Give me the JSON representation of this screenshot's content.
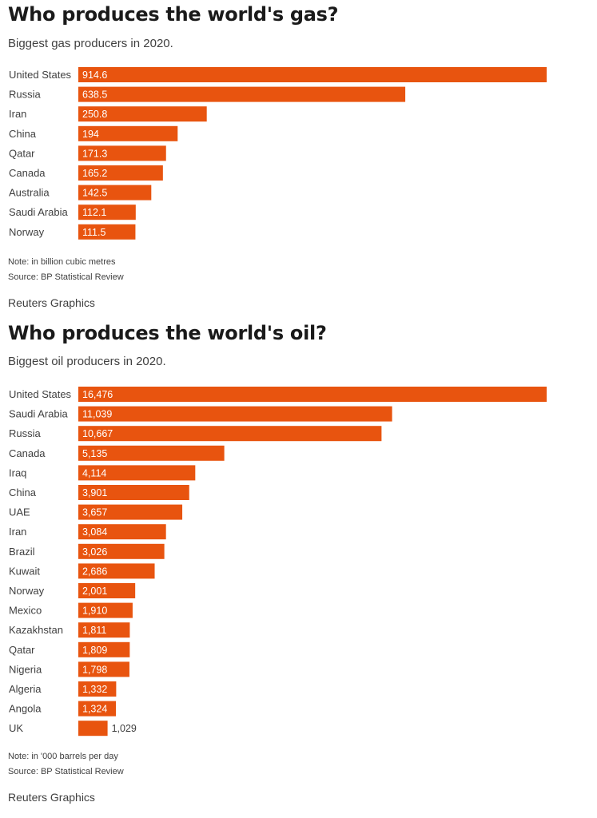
{
  "gas": {
    "title": "Who produces the world's gas?",
    "subtitle": "Biggest gas producers in 2020.",
    "note": "Note: in billion cubic metres",
    "source": "Source: BP Statistical Review",
    "credit": "Reuters Graphics"
  },
  "oil": {
    "title": "Who produces the world's oil?",
    "subtitle": "Biggest oil producers in 2020.",
    "note": "Note: in '000 barrels per day",
    "source": "Source: BP Statistical Review",
    "credit": "Reuters Graphics"
  },
  "colors": {
    "bar": "#e8540f",
    "label_inside": "#ffffff",
    "label_outside": "#404040",
    "category": "#404040"
  },
  "chart_data": [
    {
      "type": "bar",
      "orientation": "horizontal",
      "title": "Who produces the world's gas?",
      "subtitle": "Biggest gas producers in 2020.",
      "categories": [
        "United States",
        "Russia",
        "Iran",
        "China",
        "Qatar",
        "Canada",
        "Australia",
        "Saudi Arabia",
        "Norway"
      ],
      "values": [
        914.6,
        638.5,
        250.8,
        194,
        171.3,
        165.2,
        142.5,
        112.1,
        111.5
      ],
      "value_labels": [
        "914.6",
        "638.5",
        "250.8",
        "194",
        "171.3",
        "165.2",
        "142.5",
        "112.1",
        "111.5"
      ],
      "xlim": [
        0,
        914.6
      ],
      "unit": "billion cubic metres",
      "grid": false,
      "legend": "none"
    },
    {
      "type": "bar",
      "orientation": "horizontal",
      "title": "Who produces the world's oil?",
      "subtitle": "Biggest oil producers in 2020.",
      "categories": [
        "United States",
        "Saudi Arabia",
        "Russia",
        "Canada",
        "Iraq",
        "China",
        "UAE",
        "Iran",
        "Brazil",
        "Kuwait",
        "Norway",
        "Mexico",
        "Kazakhstan",
        "Qatar",
        "Nigeria",
        "Algeria",
        "Angola",
        "UK"
      ],
      "values": [
        16476,
        11039,
        10667,
        5135,
        4114,
        3901,
        3657,
        3084,
        3026,
        2686,
        2001,
        1910,
        1811,
        1809,
        1798,
        1332,
        1324,
        1029
      ],
      "value_labels": [
        "16,476",
        "11,039",
        "10,667",
        "5,135",
        "4,114",
        "3,901",
        "3,657",
        "3,084",
        "3,026",
        "2,686",
        "2,001",
        "1,910",
        "1,811",
        "1,809",
        "1,798",
        "1,332",
        "1,324",
        "1,029"
      ],
      "xlim": [
        0,
        16476
      ],
      "unit": "'000 barrels per day",
      "grid": false,
      "legend": "none"
    }
  ]
}
